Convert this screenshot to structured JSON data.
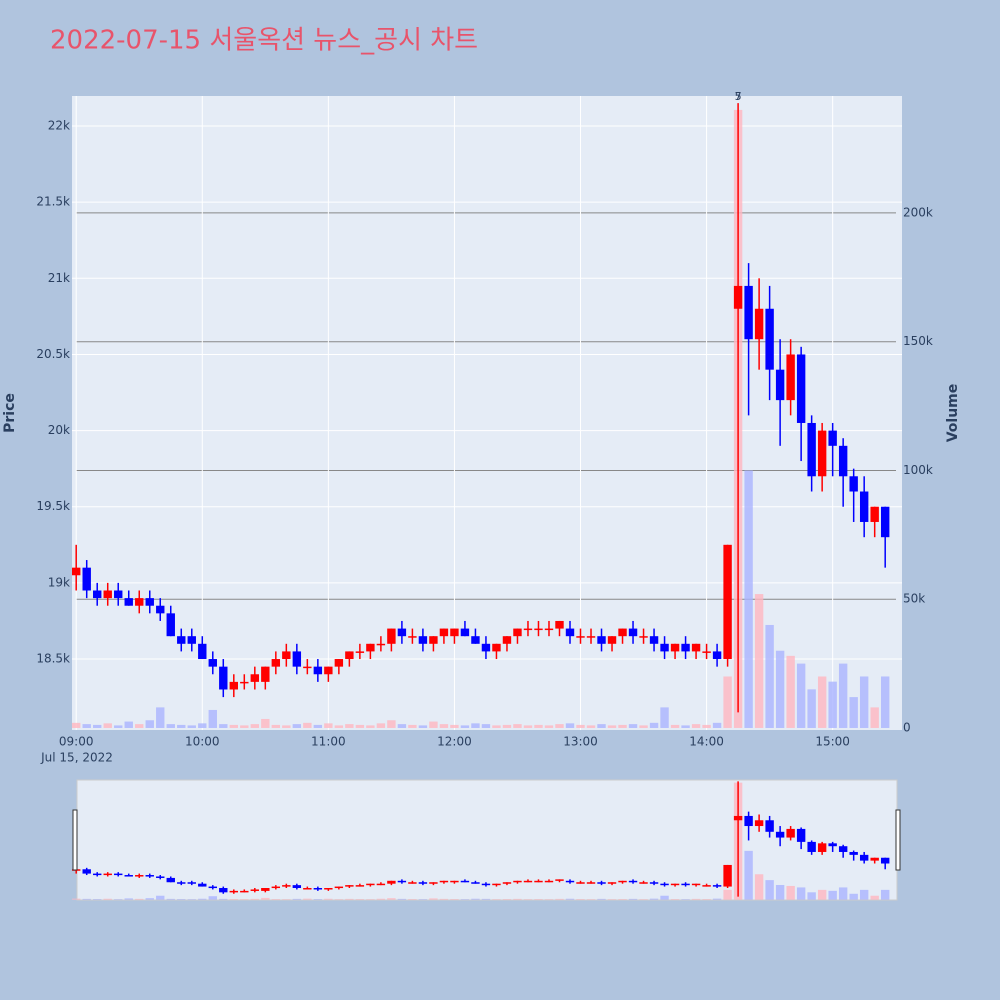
{
  "chart_data": {
    "type": "candlestick",
    "title": "2022-07-15 서울옥션 뉴스_공시 차트",
    "y_label": "Price",
    "y2_label": "Volume",
    "x_date_label": "Jul 15, 2022",
    "annotations": [
      "7",
      "5"
    ],
    "annotation_x": "14:15",
    "up_color": "#ff0000",
    "down_color": "#0000ff",
    "volume_up_color": "#ffb6c1",
    "volume_down_color": "#aab4ff",
    "title_color": "#e8546b",
    "x": [
      "09:00",
      "09:05",
      "09:10",
      "09:15",
      "09:20",
      "09:25",
      "09:30",
      "09:35",
      "09:40",
      "09:45",
      "09:50",
      "09:55",
      "10:00",
      "10:05",
      "10:10",
      "10:15",
      "10:20",
      "10:25",
      "10:30",
      "10:35",
      "10:40",
      "10:45",
      "10:50",
      "10:55",
      "11:00",
      "11:05",
      "11:10",
      "11:15",
      "11:20",
      "11:25",
      "11:30",
      "11:35",
      "11:40",
      "11:45",
      "11:50",
      "11:55",
      "12:00",
      "12:05",
      "12:10",
      "12:15",
      "12:20",
      "12:25",
      "12:30",
      "12:35",
      "12:40",
      "12:45",
      "12:50",
      "12:55",
      "13:00",
      "13:05",
      "13:10",
      "13:15",
      "13:20",
      "13:25",
      "13:30",
      "13:35",
      "13:40",
      "13:45",
      "13:50",
      "13:55",
      "14:00",
      "14:05",
      "14:10",
      "14:15",
      "14:20",
      "14:25",
      "14:30",
      "14:35",
      "14:40",
      "14:45",
      "14:50",
      "14:55",
      "15:00",
      "15:05",
      "15:10",
      "15:15",
      "15:20",
      "15:25"
    ],
    "open": [
      19050,
      19100,
      18950,
      18900,
      18950,
      18900,
      18850,
      18900,
      18850,
      18800,
      18650,
      18650,
      18600,
      18500,
      18450,
      18300,
      18350,
      18350,
      18350,
      18450,
      18500,
      18550,
      18450,
      18450,
      18400,
      18450,
      18500,
      18550,
      18550,
      18600,
      18600,
      18700,
      18650,
      18650,
      18600,
      18650,
      18650,
      18700,
      18650,
      18600,
      18550,
      18600,
      18650,
      18700,
      18700,
      18700,
      18700,
      18700,
      18650,
      18650,
      18650,
      18600,
      18650,
      18700,
      18650,
      18650,
      18600,
      18550,
      18600,
      18550,
      18550,
      18550,
      18500,
      20800,
      20950,
      20600,
      20800,
      20400,
      20200,
      20500,
      20050,
      19700,
      20000,
      19900,
      19700,
      19600,
      19400,
      19500
    ],
    "high": [
      19250,
      19150,
      19000,
      19000,
      19000,
      18950,
      18950,
      18950,
      18900,
      18850,
      18700,
      18700,
      18650,
      18550,
      18500,
      18400,
      18400,
      18450,
      18450,
      18550,
      18600,
      18600,
      18500,
      18500,
      18450,
      18500,
      18550,
      18600,
      18600,
      18650,
      18700,
      18750,
      18700,
      18700,
      18650,
      18700,
      18700,
      18750,
      18700,
      18650,
      18600,
      18650,
      18700,
      18750,
      18750,
      18750,
      18750,
      18750,
      18700,
      18700,
      18700,
      18650,
      18700,
      18750,
      18700,
      18700,
      18650,
      18600,
      18650,
      18600,
      18600,
      18600,
      19250,
      22150,
      21100,
      21000,
      20950,
      20600,
      20600,
      20550,
      20100,
      20050,
      20050,
      19950,
      19750,
      19700,
      19500,
      19500
    ],
    "low": [
      18950,
      18900,
      18850,
      18850,
      18850,
      18850,
      18800,
      18800,
      18750,
      18650,
      18550,
      18550,
      18500,
      18400,
      18250,
      18250,
      18300,
      18300,
      18300,
      18400,
      18450,
      18400,
      18400,
      18350,
      18350,
      18400,
      18450,
      18500,
      18500,
      18550,
      18550,
      18600,
      18600,
      18550,
      18550,
      18600,
      18600,
      18650,
      18600,
      18500,
      18500,
      18550,
      18600,
      18650,
      18650,
      18650,
      18650,
      18600,
      18600,
      18600,
      18550,
      18550,
      18600,
      18600,
      18600,
      18550,
      18500,
      18500,
      18500,
      18500,
      18500,
      18450,
      18450,
      18150,
      20100,
      20400,
      20200,
      19900,
      20100,
      19800,
      19600,
      19600,
      19700,
      19500,
      19400,
      19300,
      19300,
      19100
    ],
    "close": [
      19100,
      18950,
      18900,
      18950,
      18900,
      18850,
      18900,
      18850,
      18800,
      18650,
      18600,
      18600,
      18500,
      18450,
      18300,
      18350,
      18350,
      18400,
      18450,
      18500,
      18550,
      18450,
      18450,
      18400,
      18450,
      18500,
      18550,
      18550,
      18600,
      18600,
      18700,
      18650,
      18650,
      18600,
      18650,
      18700,
      18700,
      18650,
      18600,
      18550,
      18600,
      18650,
      18700,
      18700,
      18700,
      18700,
      18750,
      18650,
      18650,
      18650,
      18600,
      18650,
      18700,
      18650,
      18650,
      18600,
      18550,
      18600,
      18550,
      18600,
      18550,
      18500,
      19250,
      20950,
      20600,
      20800,
      20400,
      20200,
      20500,
      20050,
      19700,
      20000,
      19900,
      19700,
      19600,
      19400,
      19500,
      19300
    ],
    "volume": [
      2000,
      1500,
      1200,
      1800,
      1000,
      2500,
      1500,
      3000,
      8000,
      1500,
      1200,
      1000,
      1800,
      7000,
      1500,
      1200,
      1000,
      1500,
      3500,
      1200,
      1000,
      1500,
      2000,
      1200,
      1800,
      1000,
      1500,
      1200,
      1000,
      1800,
      3000,
      1500,
      1200,
      1000,
      2500,
      1500,
      1200,
      1000,
      1800,
      1500,
      1000,
      1200,
      1500,
      1000,
      1200,
      1000,
      1500,
      1800,
      1200,
      1000,
      1500,
      1000,
      1200,
      1500,
      1000,
      2000,
      8000,
      1200,
      1000,
      1500,
      1200,
      2000,
      20000,
      240000,
      100000,
      52000,
      40000,
      30000,
      28000,
      25000,
      15000,
      20000,
      18000,
      25000,
      12000,
      20000,
      8000,
      20000
    ],
    "xlim": [
      "08:58",
      "15:33"
    ],
    "xticks": [
      "09:00",
      "10:00",
      "11:00",
      "12:00",
      "13:00",
      "14:00",
      "15:00"
    ],
    "ylim": [
      18034,
      22197
    ],
    "yticks": [
      {
        "value": 18500,
        "label": "18.5k"
      },
      {
        "value": 19000,
        "label": "19k"
      },
      {
        "value": 19500,
        "label": "19.5k"
      },
      {
        "value": 20000,
        "label": "20k"
      },
      {
        "value": 20500,
        "label": "20.5k"
      },
      {
        "value": 21000,
        "label": "21k"
      },
      {
        "value": 21500,
        "label": "21.5k"
      },
      {
        "value": 22000,
        "label": "22k"
      }
    ],
    "y2lim": [
      -780,
      245400
    ],
    "y2ticks": [
      0,
      {
        "value": 50000,
        "label": "50k"
      },
      {
        "value": 100000,
        "label": "100k"
      },
      {
        "value": 150000,
        "label": "150k"
      },
      {
        "value": 200000,
        "label": "200k"
      }
    ],
    "grid": true,
    "range_slider": true
  }
}
